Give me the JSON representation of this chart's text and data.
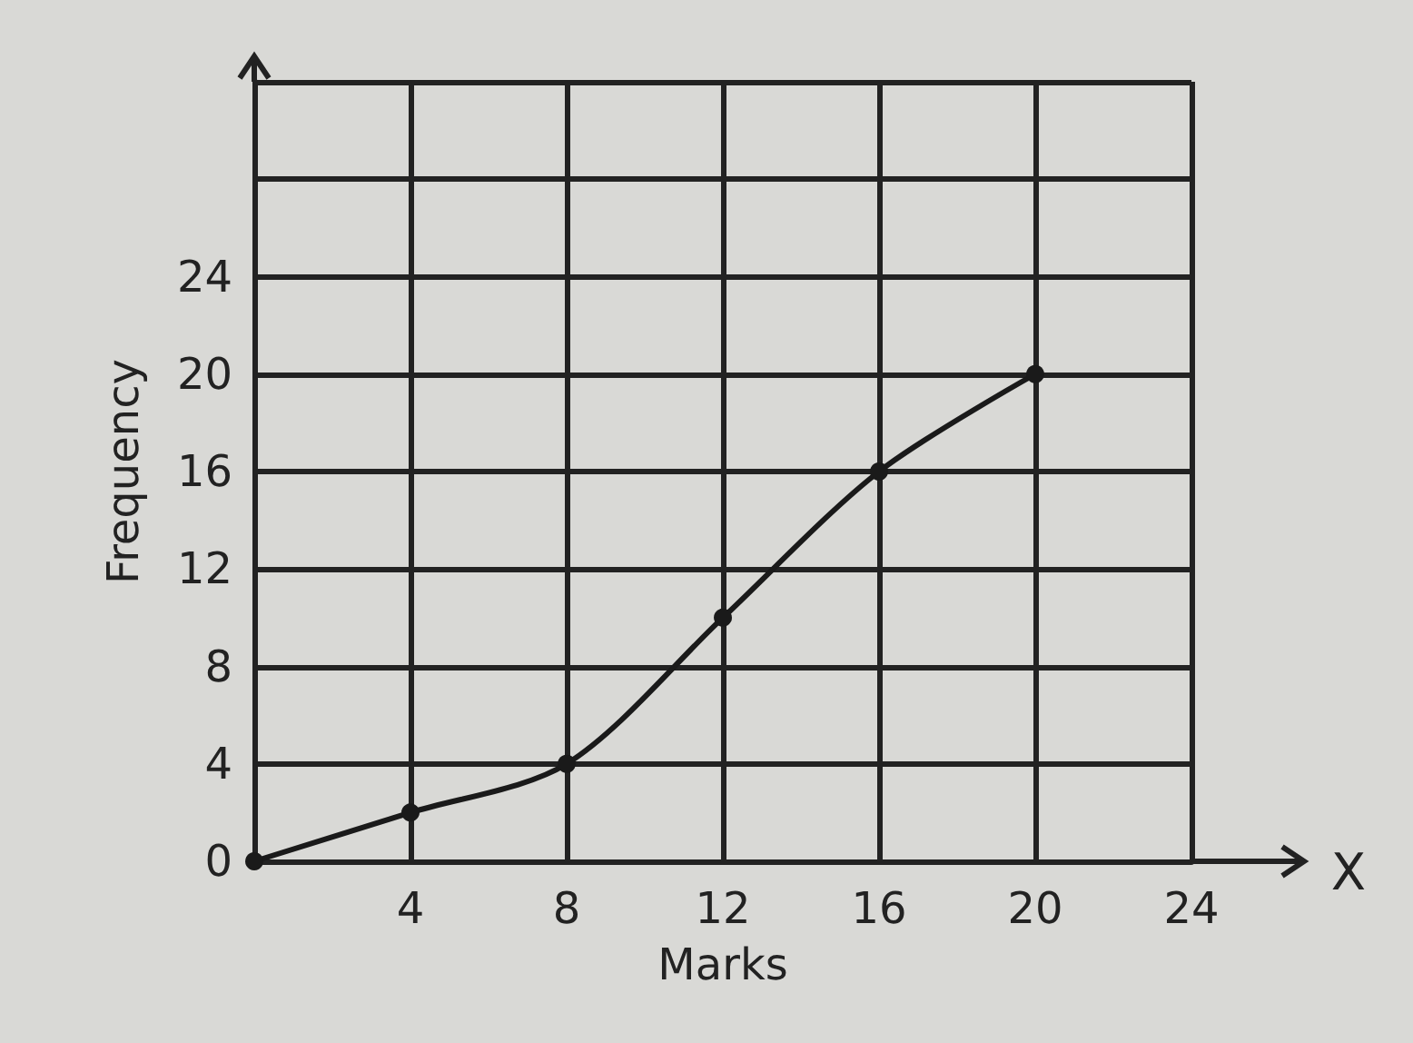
{
  "chart_data": {
    "type": "line",
    "xlabel": "Marks",
    "ylabel": "Frequency",
    "annotations": [
      "X"
    ],
    "x": [
      0,
      4,
      8,
      12,
      16,
      20
    ],
    "series": [
      {
        "color": "#1a1a1a",
        "values": [
          0,
          2,
          4,
          10,
          16,
          20
        ]
      }
    ],
    "xlim": [
      0,
      24
    ],
    "xticks": [
      {
        "value": 0,
        "label": null
      },
      4,
      8,
      12,
      16,
      20,
      24
    ],
    "ylim": [
      0,
      32
    ],
    "yticks": [
      0,
      4,
      8,
      12,
      16,
      20,
      24,
      {
        "value": 28,
        "label": null
      },
      {
        "value": 32,
        "label": null
      }
    ],
    "grid": true,
    "marker": "circle",
    "line_style": "solid"
  }
}
